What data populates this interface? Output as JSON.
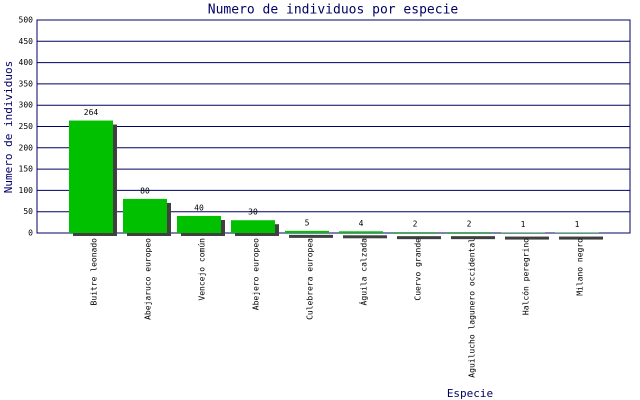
{
  "chart_data": {
    "type": "bar",
    "title": "Numero de individuos por especie",
    "x_label": "Especie",
    "y_label": "Numero de individuos",
    "categories": [
      "Buitre leonado",
      "Abejaruco europeo",
      "Vencejo común",
      "Abejero europeo",
      "Culebrera europea",
      "Águila calzada",
      "Cuervo grande",
      "Aguilucho lagunero occidental",
      "Halcón peregrino",
      "Milano negro"
    ],
    "values": [
      264,
      80,
      40,
      30,
      5,
      4,
      2,
      2,
      1,
      1
    ],
    "color": "#00c000",
    "shadow_color": "#404040",
    "grid_color": "#000066",
    "ylim": [
      0,
      500
    ],
    "yticks": [
      0,
      50,
      100,
      150,
      200,
      250,
      300,
      350,
      400,
      450,
      500
    ],
    "grid": true
  }
}
